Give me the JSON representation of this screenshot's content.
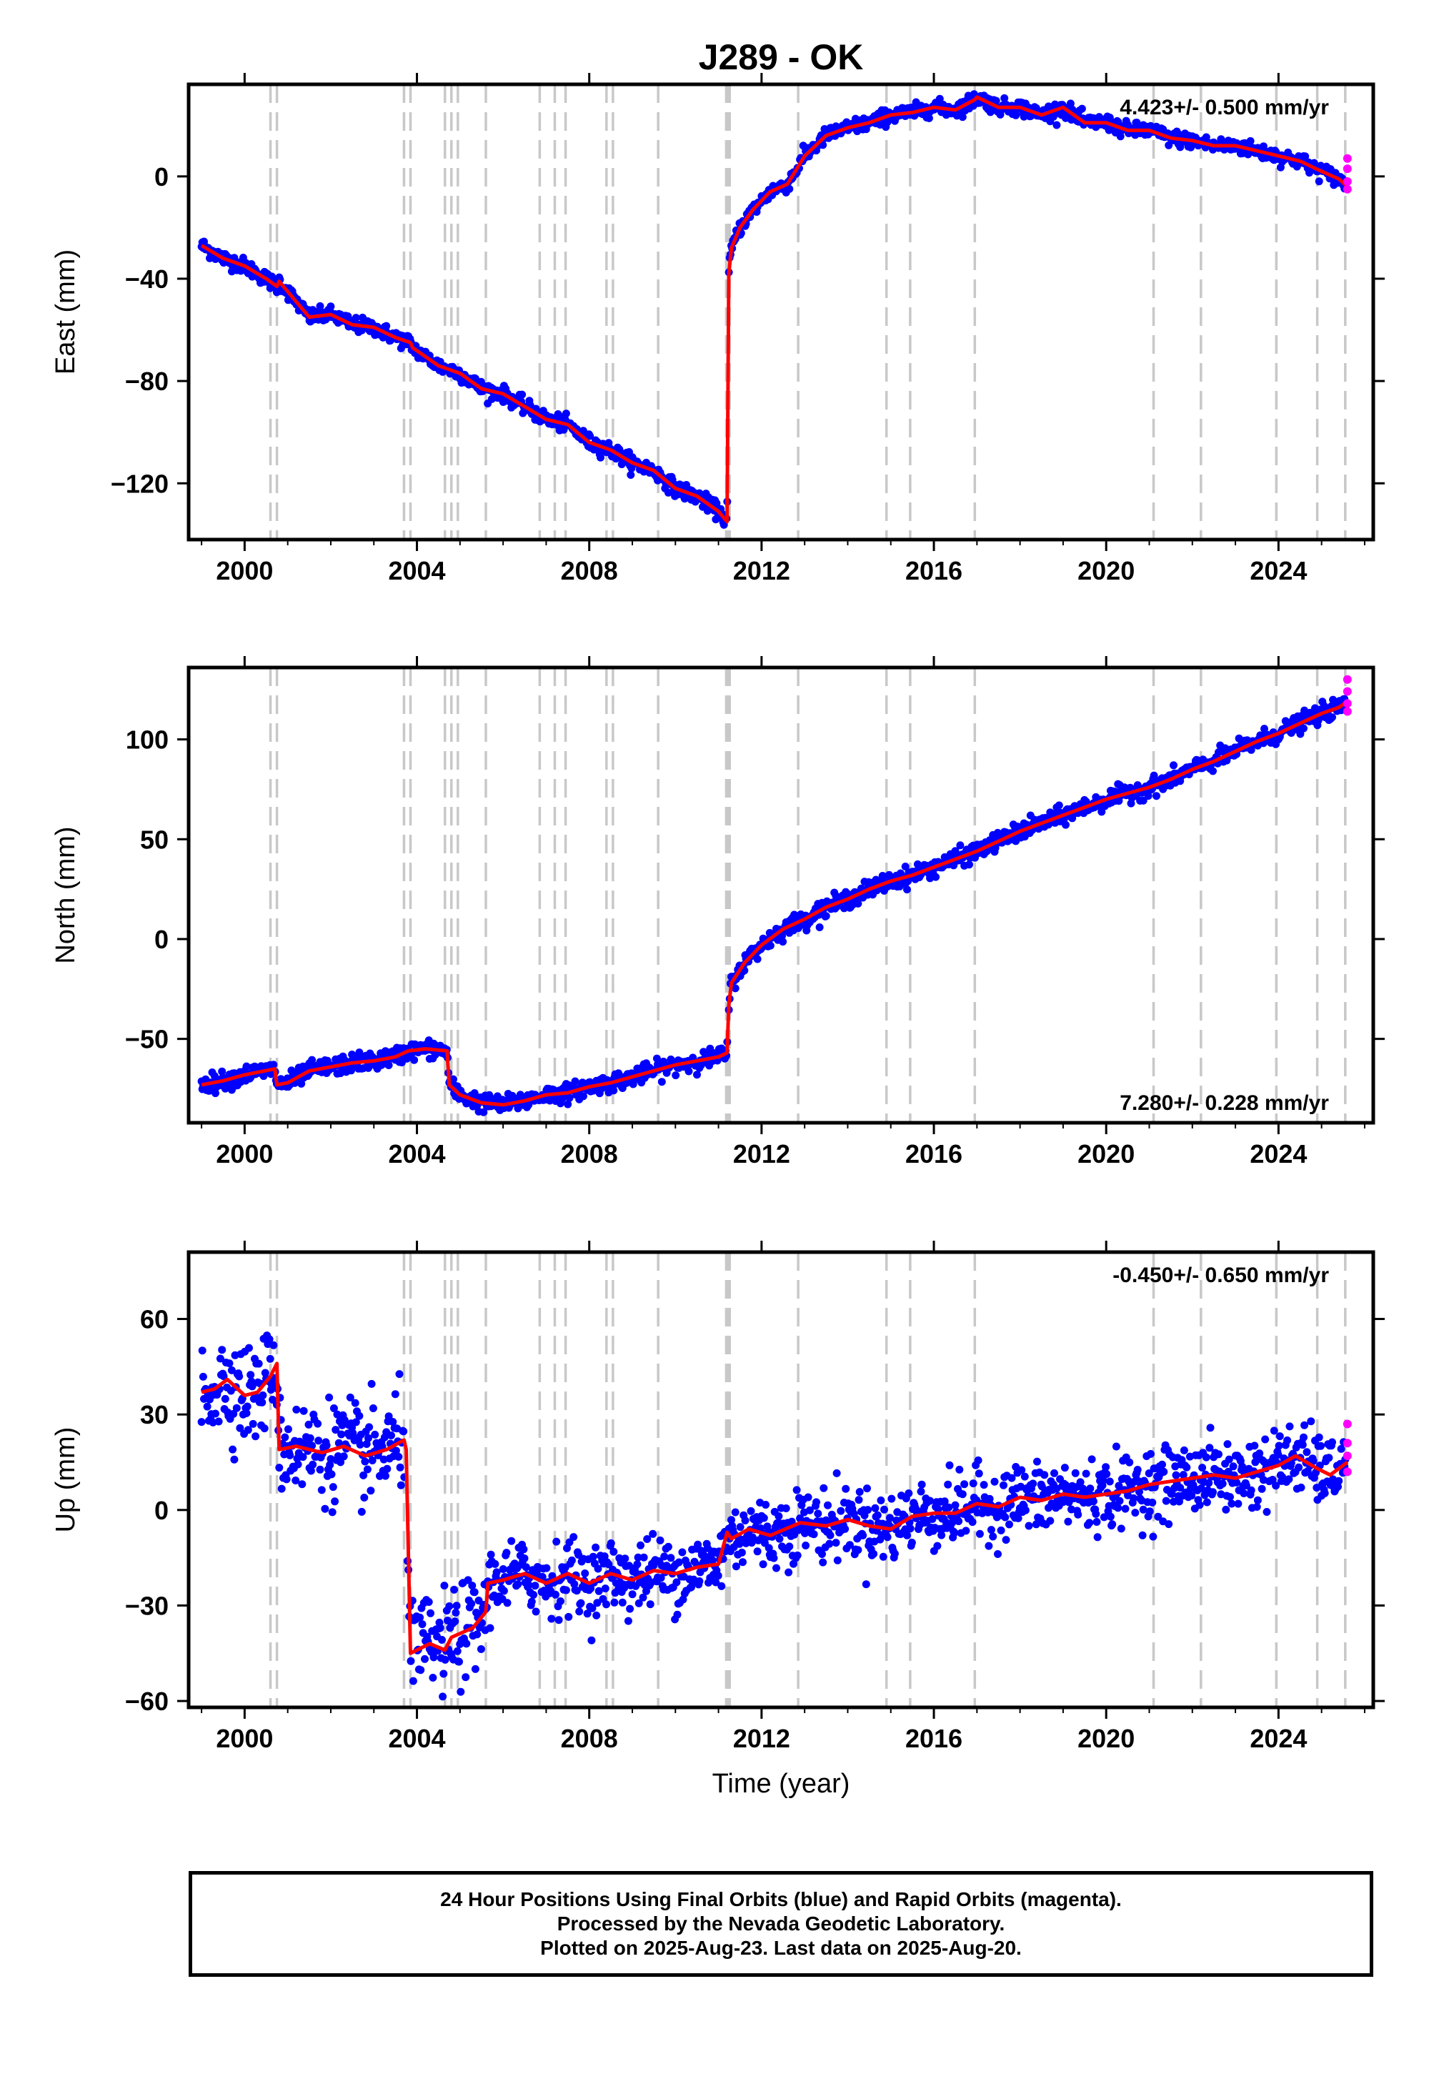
{
  "title": "J289 - OK",
  "colors": {
    "final": "#0000ff",
    "rapid": "#ff00ff",
    "model": "#ff0000",
    "event_line": "#c8c8c8"
  },
  "xaxis": {
    "label": "Time (year)",
    "range": [
      1998.7,
      2026.2
    ],
    "ticks": [
      2000,
      2004,
      2008,
      2012,
      2016,
      2020,
      2024
    ]
  },
  "events": [
    2000.6,
    2000.75,
    2003.7,
    2003.85,
    2004.65,
    2004.8,
    2004.95,
    2005.6,
    2006.85,
    2007.2,
    2007.45,
    2008.4,
    2008.55,
    2009.6,
    2011.18,
    2011.22,
    2011.26,
    2012.85,
    2014.9,
    2015.45,
    2016.95,
    2021.1,
    2022.2,
    2023.95,
    2024.9,
    2025.55
  ],
  "chart_data": [
    {
      "type": "scatter",
      "name": "east",
      "ylabel": "East (mm)",
      "ylim": [
        -142,
        36
      ],
      "yticks": [
        -120,
        -80,
        -40,
        0
      ],
      "rate": "4.423+/- 0.500 mm/yr",
      "rate_position": "top-right",
      "model": {
        "x": [
          1999.0,
          1999.5,
          2000.0,
          2000.5,
          2000.75,
          2000.8,
          2001.5,
          2002.0,
          2002.5,
          2003.0,
          2003.5,
          2003.85,
          2003.9,
          2004.5,
          2005.0,
          2005.5,
          2006.0,
          2006.5,
          2007.0,
          2007.5,
          2008.0,
          2008.5,
          2009.0,
          2009.5,
          2010.0,
          2010.5,
          2011.0,
          2011.2,
          2011.24,
          2011.3,
          2011.5,
          2011.8,
          2012.2,
          2012.6,
          2013.0,
          2013.5,
          2014.0,
          2014.5,
          2015.0,
          2015.5,
          2016.0,
          2016.5,
          2016.95,
          2017.0,
          2017.5,
          2018.0,
          2018.5,
          2019.0,
          2019.5,
          2020.0,
          2020.5,
          2021.0,
          2021.5,
          2022.0,
          2022.5,
          2023.0,
          2023.5,
          2024.0,
          2024.5,
          2025.0,
          2025.4,
          2025.6
        ],
        "y": [
          -27,
          -32,
          -35,
          -40,
          -43,
          -41,
          -55,
          -54,
          -58,
          -59,
          -63,
          -65,
          -67,
          -74,
          -77,
          -83,
          -85,
          -90,
          -95,
          -97,
          -104,
          -107,
          -112,
          -115,
          -122,
          -125,
          -131,
          -135,
          -38,
          -28,
          -20,
          -13,
          -6,
          -3,
          8,
          16,
          19,
          21,
          24,
          25,
          27,
          26,
          30,
          31,
          27,
          27,
          24,
          27,
          21,
          21,
          18,
          18,
          15,
          14,
          12,
          12,
          10,
          8,
          6,
          2,
          -1,
          -4
        ]
      },
      "observed_final": {
        "x_range": [
          1999.0,
          2025.55
        ],
        "scatter_sd_mm": 1.5,
        "gap": [
          2011.21,
          2011.24
        ]
      },
      "observed_rapid": {
        "x": [
          2025.6,
          2025.6,
          2025.6,
          2025.6
        ],
        "y": [
          -2,
          3,
          7,
          -5
        ]
      }
    },
    {
      "type": "scatter",
      "name": "north",
      "ylabel": "North (mm)",
      "ylim": [
        -92,
        136
      ],
      "yticks": [
        -50,
        0,
        50,
        100
      ],
      "rate": "7.280+/- 0.228 mm/yr",
      "rate_position": "bottom-right",
      "model": {
        "x": [
          1999.0,
          1999.5,
          2000.0,
          2000.7,
          2000.75,
          2001.0,
          2001.5,
          2002.0,
          2002.5,
          2003.0,
          2003.5,
          2003.8,
          2004.2,
          2004.7,
          2004.75,
          2005.0,
          2005.5,
          2006.0,
          2006.5,
          2007.0,
          2007.5,
          2008.0,
          2008.5,
          2009.0,
          2009.5,
          2010.0,
          2010.5,
          2011.0,
          2011.2,
          2011.24,
          2011.3,
          2011.6,
          2012.0,
          2012.5,
          2013.0,
          2013.5,
          2014.0,
          2014.5,
          2015.0,
          2015.5,
          2016.0,
          2016.5,
          2017.0,
          2017.5,
          2018.0,
          2018.5,
          2019.0,
          2019.5,
          2020.0,
          2020.5,
          2021.0,
          2021.5,
          2022.0,
          2022.5,
          2023.0,
          2023.5,
          2024.0,
          2024.5,
          2025.0,
          2025.4,
          2025.6
        ],
        "y": [
          -73,
          -71,
          -68,
          -65,
          -73,
          -72,
          -66,
          -64,
          -62,
          -61,
          -59,
          -56,
          -55,
          -56,
          -73,
          -78,
          -82,
          -83,
          -81,
          -78,
          -77,
          -74,
          -72,
          -69,
          -66,
          -63,
          -61,
          -59,
          -57,
          -33,
          -22,
          -12,
          -3,
          5,
          10,
          16,
          20,
          25,
          29,
          32,
          36,
          40,
          44,
          49,
          54,
          58,
          62,
          66,
          70,
          73,
          76,
          80,
          85,
          89,
          94,
          99,
          103,
          108,
          113,
          116,
          119
        ]
      },
      "observed_final": {
        "x_range": [
          1999.0,
          2025.55
        ],
        "scatter_sd_mm": 2.2,
        "gap": [
          2011.21,
          2011.24
        ]
      },
      "observed_rapid": {
        "x": [
          2025.6,
          2025.6,
          2025.6,
          2025.6
        ],
        "y": [
          114,
          118,
          124,
          130
        ]
      }
    },
    {
      "type": "scatter",
      "name": "up",
      "ylabel": "Up (mm)",
      "xlabel": "Time (year)",
      "ylim": [
        -62,
        81
      ],
      "yticks": [
        -60,
        -30,
        0,
        30,
        60
      ],
      "rate": "-0.450+/- 0.650 mm/yr",
      "rate_position": "top-right",
      "model": {
        "x": [
          1999.0,
          1999.3,
          1999.6,
          2000.0,
          2000.3,
          2000.6,
          2000.75,
          2000.8,
          2001.2,
          2001.8,
          2002.3,
          2002.8,
          2003.3,
          2003.7,
          2003.75,
          2003.85,
          2004.3,
          2004.65,
          2004.8,
          2005.3,
          2005.6,
          2005.65,
          2006.0,
          2006.5,
          2007.0,
          2007.5,
          2008.0,
          2008.5,
          2009.0,
          2009.5,
          2010.0,
          2010.5,
          2011.0,
          2011.2,
          2011.3,
          2011.7,
          2012.2,
          2012.9,
          2013.5,
          2014.0,
          2014.5,
          2015.0,
          2015.5,
          2016.0,
          2016.5,
          2017.0,
          2017.5,
          2018.0,
          2018.5,
          2019.0,
          2019.5,
          2020.0,
          2020.5,
          2021.0,
          2021.5,
          2022.0,
          2022.5,
          2023.0,
          2023.5,
          2024.0,
          2024.4,
          2024.9,
          2025.2,
          2025.6
        ],
        "y": [
          37,
          38,
          41,
          36,
          37,
          42,
          46,
          19,
          20,
          18,
          20,
          17,
          19,
          22,
          19,
          -45,
          -42,
          -44,
          -40,
          -37,
          -32,
          -23,
          -22,
          -20,
          -23,
          -20,
          -23,
          -20,
          -22,
          -19,
          -20,
          -18,
          -17,
          -7,
          -9,
          -6,
          -8,
          -4,
          -5,
          -3,
          -5,
          -6,
          -2,
          -1,
          -1,
          2,
          1,
          4,
          3,
          5,
          4,
          5,
          6,
          8,
          9,
          10,
          11,
          10,
          12,
          14,
          17,
          13,
          11,
          15
        ]
      },
      "observed_final": {
        "x_range": [
          1999.0,
          2025.55
        ],
        "scatter_sd_mm": 5.5,
        "gap": [
          2003.72,
          2003.78
        ]
      },
      "observed_rapid": {
        "x": [
          2025.6,
          2025.6,
          2025.6,
          2025.6
        ],
        "y": [
          12,
          17,
          21,
          27
        ]
      }
    }
  ],
  "footer": {
    "line1": "24 Hour Positions Using Final Orbits (blue) and Rapid Orbits (magenta).",
    "line2": "Processed by the Nevada Geodetic Laboratory.",
    "line3": "Plotted on 2025-Aug-23. Last data on 2025-Aug-20."
  }
}
